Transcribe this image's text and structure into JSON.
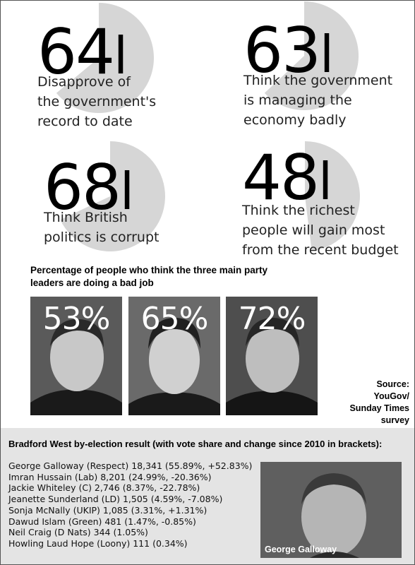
{
  "stats": [
    {
      "value": "64",
      "fraction": 0.64,
      "text": "Disapprove of\nthe government's\nrecord to date"
    },
    {
      "value": "63",
      "fraction": 0.63,
      "text": "Think the government\nis managing the\neconomy badly"
    },
    {
      "value": "68",
      "fraction": 0.68,
      "text": "Think British\npolitics is corrupt"
    },
    {
      "value": "48",
      "fraction": 0.48,
      "text": "Think the richest\npeople will gain most\nfrom the recent budget"
    }
  ],
  "leaders": {
    "title": "Percentage of people who think the three main party leaders are doing a bad job",
    "items": [
      {
        "pct": "53%"
      },
      {
        "pct": "65%"
      },
      {
        "pct": "72%"
      }
    ],
    "source": "Source: YouGov/\nSunday Times\nsurvey"
  },
  "byelection": {
    "title": "Bradford West by-election result (with vote share and change since 2010 in brackets):",
    "results": [
      "George Galloway (Respect) 18,341 (55.89%, +52.83%)",
      "Imran Hussain (Lab) 8,201 (24.99%, -20.36%)",
      "Jackie Whiteley (C) 2,746 (8.37%, -22.78%)",
      "Jeanette Sunderland (LD) 1,505 (4.59%, -7.08%)",
      "Sonja McNally (UKIP) 1,085 (3.31%, +1.31%)",
      "Dawud Islam (Green) 481 (1.47%, -0.85%)",
      "Neil Craig (D Nats) 344 (1.05%)",
      "Howling Laud Hope (Loony) 111 (0.34%)"
    ],
    "photo_caption": "George Galloway"
  },
  "colors": {
    "pie_fill": "#d6d6d6",
    "photo_bg": "#6d6d6d",
    "panel_bg": "#e4e4e4"
  }
}
